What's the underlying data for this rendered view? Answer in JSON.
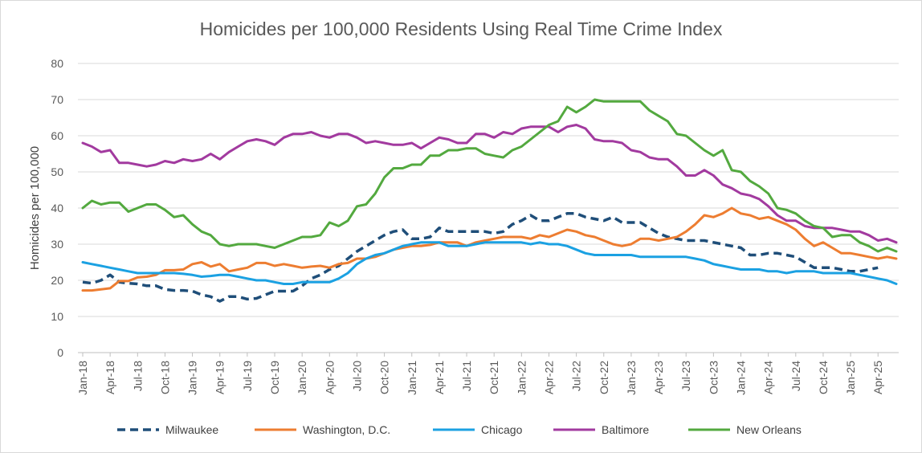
{
  "chart_data": {
    "type": "line",
    "title": "Homicides per 100,000 Residents Using Real Time Crime Index",
    "xlabel": "",
    "ylabel": "Homicides per 100,000",
    "ylim": [
      0,
      80
    ],
    "yticks": [
      0,
      10,
      20,
      30,
      40,
      50,
      60,
      70,
      80
    ],
    "grid": true,
    "legend_position": "bottom",
    "x": [
      "Jan-18",
      "Feb-18",
      "Mar-18",
      "Apr-18",
      "May-18",
      "Jun-18",
      "Jul-18",
      "Aug-18",
      "Sep-18",
      "Oct-18",
      "Nov-18",
      "Dec-18",
      "Jan-19",
      "Feb-19",
      "Mar-19",
      "Apr-19",
      "May-19",
      "Jun-19",
      "Jul-19",
      "Aug-19",
      "Sep-19",
      "Oct-19",
      "Nov-19",
      "Dec-19",
      "Jan-20",
      "Feb-20",
      "Mar-20",
      "Apr-20",
      "May-20",
      "Jun-20",
      "Jul-20",
      "Aug-20",
      "Sep-20",
      "Oct-20",
      "Nov-20",
      "Dec-20",
      "Jan-21",
      "Feb-21",
      "Mar-21",
      "Apr-21",
      "May-21",
      "Jun-21",
      "Jul-21",
      "Aug-21",
      "Sep-21",
      "Oct-21",
      "Nov-21",
      "Dec-21",
      "Jan-22",
      "Feb-22",
      "Mar-22",
      "Apr-22",
      "May-22",
      "Jun-22",
      "Jul-22",
      "Aug-22",
      "Sep-22",
      "Oct-22",
      "Nov-22",
      "Dec-22",
      "Jan-23",
      "Feb-23",
      "Mar-23",
      "Apr-23",
      "May-23",
      "Jun-23",
      "Jul-23",
      "Aug-23",
      "Sep-23",
      "Oct-23",
      "Nov-23",
      "Dec-23",
      "Jan-24",
      "Feb-24",
      "Mar-24",
      "Apr-24",
      "May-24",
      "Jun-24",
      "Jul-24",
      "Aug-24",
      "Sep-24",
      "Oct-24",
      "Nov-24",
      "Dec-24",
      "Jan-25",
      "Feb-25",
      "Mar-25",
      "Apr-25",
      "May-25",
      "Jun-25"
    ],
    "tick_labels": [
      "Jan-18",
      "Apr-18",
      "Jul-18",
      "Oct-18",
      "Jan-19",
      "Apr-19",
      "Jul-19",
      "Oct-19",
      "Jan-20",
      "Apr-20",
      "Jul-20",
      "Oct-20",
      "Jan-21",
      "Apr-21",
      "Jul-21",
      "Oct-21",
      "Jan-22",
      "Apr-22",
      "Jul-22",
      "Oct-22",
      "Jan-23",
      "Apr-23",
      "Jul-23",
      "Oct-23",
      "Jan-24",
      "Apr-24",
      "Jul-24",
      "Oct-24",
      "Jan-25",
      "Apr-25"
    ],
    "series": [
      {
        "name": "Milwaukee",
        "color": "#1f4e79",
        "dashed": true,
        "values": [
          19.5,
          19.2,
          20.0,
          21.5,
          19.5,
          19.2,
          19.0,
          18.5,
          18.5,
          17.5,
          17.2,
          17.2,
          17.0,
          16.0,
          15.5,
          14.2,
          15.5,
          15.5,
          14.8,
          15.0,
          16.0,
          17.0,
          17.0,
          17.0,
          18.5,
          20.5,
          21.5,
          23.0,
          24.0,
          26.0,
          28.0,
          29.5,
          31.0,
          32.5,
          33.5,
          34.0,
          31.5,
          31.5,
          32.0,
          34.5,
          33.5,
          33.5,
          33.5,
          33.5,
          33.5,
          33.0,
          33.5,
          35.5,
          36.5,
          38.0,
          36.5,
          36.5,
          37.5,
          38.5,
          38.5,
          37.5,
          37.0,
          36.5,
          37.5,
          36.0,
          36.0,
          36.0,
          34.5,
          33.0,
          32.0,
          31.5,
          31.0,
          31.0,
          31.0,
          30.5,
          30.0,
          29.5,
          29.0,
          27.0,
          27.0,
          27.5,
          27.5,
          27.0,
          26.5,
          25.0,
          23.5,
          23.5,
          23.5,
          23.0,
          22.5,
          22.5,
          23.0,
          23.5,
          null,
          null
        ]
      },
      {
        "name": "Washington, D.C.",
        "color": "#ed7d31",
        "dashed": false,
        "values": [
          17.2,
          17.2,
          17.5,
          17.8,
          19.8,
          19.8,
          20.8,
          21.0,
          21.5,
          22.8,
          22.8,
          23.0,
          24.5,
          25.0,
          23.8,
          24.5,
          22.5,
          23.0,
          23.5,
          24.8,
          24.8,
          24.0,
          24.5,
          24.0,
          23.5,
          23.8,
          24.0,
          23.5,
          24.5,
          24.8,
          26.0,
          26.0,
          26.5,
          27.5,
          28.5,
          29.0,
          29.5,
          29.5,
          29.8,
          30.5,
          30.5,
          30.5,
          29.5,
          30.5,
          31.0,
          31.5,
          32.0,
          32.0,
          32.0,
          31.5,
          32.5,
          32.0,
          33.0,
          34.0,
          33.5,
          32.5,
          32.0,
          31.0,
          30.0,
          29.5,
          30.0,
          31.5,
          31.5,
          31.0,
          31.5,
          32.0,
          33.5,
          35.5,
          38.0,
          37.5,
          38.5,
          40.0,
          38.5,
          38.0,
          37.0,
          37.5,
          36.5,
          35.5,
          34.0,
          31.5,
          29.5,
          30.5,
          29.0,
          27.5,
          27.5,
          27.0,
          26.5,
          26.0,
          26.5,
          26.0
        ]
      },
      {
        "name": "Chicago",
        "color": "#1ba1e2",
        "dashed": false,
        "values": [
          25.0,
          24.5,
          24.0,
          23.5,
          23.0,
          22.5,
          22.0,
          22.0,
          22.0,
          22.0,
          22.0,
          21.8,
          21.5,
          21.0,
          21.2,
          21.5,
          21.5,
          21.0,
          20.5,
          20.0,
          20.0,
          19.5,
          19.0,
          19.0,
          19.5,
          19.5,
          19.5,
          19.5,
          20.5,
          22.0,
          24.5,
          26.0,
          27.0,
          27.5,
          28.5,
          29.5,
          30.0,
          30.5,
          30.5,
          30.5,
          29.5,
          29.5,
          29.5,
          30.0,
          30.5,
          30.5,
          30.5,
          30.5,
          30.5,
          30.0,
          30.5,
          30.0,
          30.0,
          29.5,
          28.5,
          27.5,
          27.0,
          27.0,
          27.0,
          27.0,
          27.0,
          26.5,
          26.5,
          26.5,
          26.5,
          26.5,
          26.5,
          26.0,
          25.5,
          24.5,
          24.0,
          23.5,
          23.0,
          23.0,
          23.0,
          22.5,
          22.5,
          22.0,
          22.5,
          22.5,
          22.5,
          22.0,
          22.0,
          22.0,
          22.0,
          21.5,
          21.0,
          20.5,
          20.0,
          19.0
        ]
      },
      {
        "name": "Baltimore",
        "color": "#a23a9f",
        "dashed": false,
        "values": [
          58.0,
          57.0,
          55.5,
          56.0,
          52.5,
          52.5,
          52.0,
          51.5,
          52.0,
          53.0,
          52.5,
          53.5,
          53.0,
          53.5,
          55.0,
          53.5,
          55.5,
          57.0,
          58.5,
          59.0,
          58.5,
          57.5,
          59.5,
          60.5,
          60.5,
          61.0,
          60.0,
          59.5,
          60.5,
          60.5,
          59.5,
          58.0,
          58.5,
          58.0,
          57.5,
          57.5,
          58.0,
          56.5,
          58.0,
          59.5,
          59.0,
          58.0,
          58.0,
          60.5,
          60.5,
          59.5,
          61.0,
          60.5,
          62.0,
          62.5,
          62.5,
          62.5,
          61.0,
          62.5,
          63.0,
          62.0,
          59.0,
          58.5,
          58.5,
          58.0,
          56.0,
          55.5,
          54.0,
          53.5,
          53.5,
          51.5,
          49.0,
          49.0,
          50.5,
          49.0,
          46.5,
          45.5,
          44.0,
          43.5,
          42.5,
          40.5,
          38.0,
          36.5,
          36.5,
          35.0,
          34.5,
          34.5,
          34.5,
          34.0,
          33.5,
          33.5,
          32.5,
          31.0,
          31.5,
          30.5
        ]
      },
      {
        "name": "New Orleans",
        "color": "#53a93f",
        "dashed": false,
        "values": [
          40.0,
          42.0,
          41.0,
          41.5,
          41.5,
          39.0,
          40.0,
          41.0,
          41.0,
          39.5,
          37.5,
          38.0,
          35.5,
          33.5,
          32.5,
          30.0,
          29.5,
          30.0,
          30.0,
          30.0,
          29.5,
          29.0,
          30.0,
          31.0,
          32.0,
          32.0,
          32.5,
          36.0,
          35.0,
          36.5,
          40.5,
          41.0,
          44.0,
          48.5,
          51.0,
          51.0,
          52.0,
          52.0,
          54.5,
          54.5,
          56.0,
          56.0,
          56.5,
          56.5,
          55.0,
          54.5,
          54.0,
          56.0,
          57.0,
          59.0,
          61.0,
          63.0,
          64.0,
          68.0,
          66.5,
          68.0,
          70.0,
          69.5,
          69.5,
          69.5,
          69.5,
          69.5,
          67.0,
          65.5,
          64.0,
          60.5,
          60.0,
          58.0,
          56.0,
          54.5,
          56.0,
          50.5,
          50.0,
          47.5,
          46.0,
          44.0,
          40.0,
          39.5,
          38.5,
          36.5,
          35.0,
          34.5,
          32.0,
          32.5,
          32.5,
          30.5,
          29.5,
          28.0,
          29.0,
          28.0
        ]
      }
    ]
  }
}
